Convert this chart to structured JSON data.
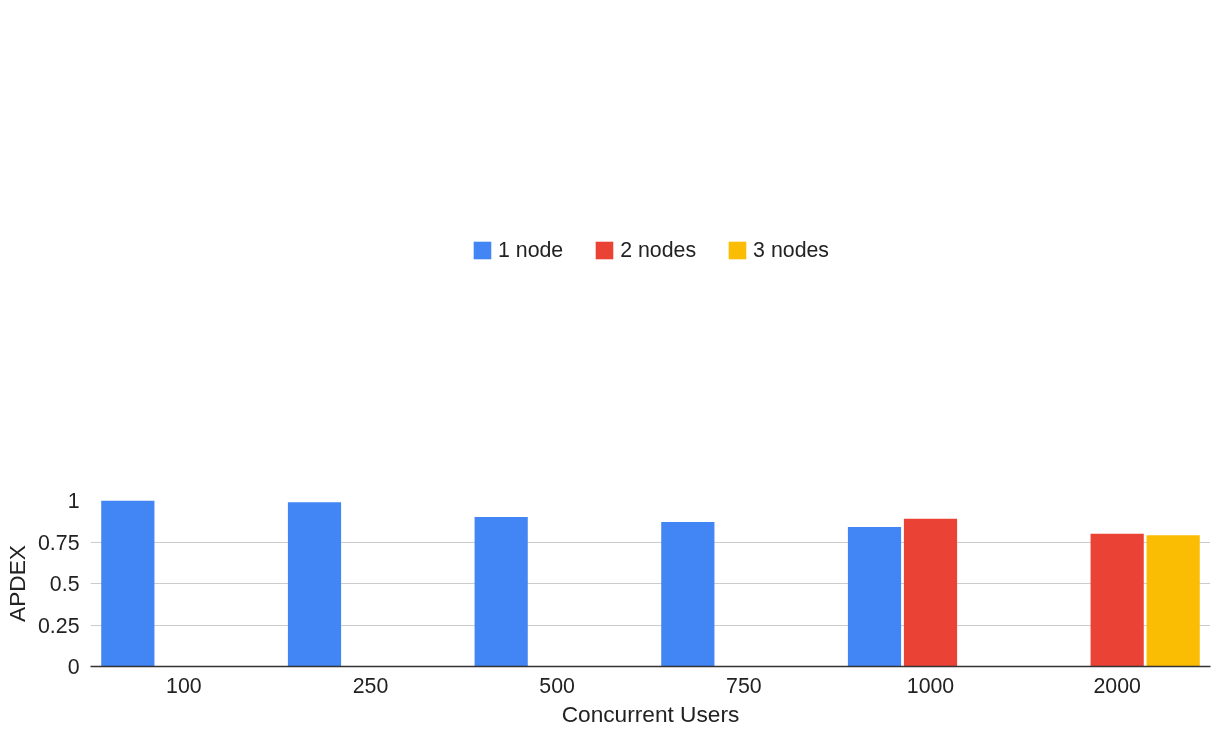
{
  "chart_data": {
    "type": "bar",
    "xlabel": "Concurrent Users",
    "ylabel": "APDEX",
    "categories": [
      "100",
      "250",
      "500",
      "750",
      "1000",
      "2000"
    ],
    "series": [
      {
        "name": "1 node",
        "color": "#4285f4",
        "values": [
          1.0,
          0.99,
          0.9,
          0.87,
          0.84,
          null
        ]
      },
      {
        "name": "2 nodes",
        "color": "#ea4335",
        "values": [
          null,
          null,
          null,
          null,
          0.89,
          0.8
        ]
      },
      {
        "name": "3 nodes",
        "color": "#fbbc04",
        "values": [
          null,
          null,
          null,
          null,
          null,
          0.79
        ]
      }
    ],
    "ylim": [
      0,
      1
    ],
    "yticks": [
      0,
      0.25,
      0.5,
      0.75,
      1
    ],
    "grid": "y",
    "legend": "top"
  }
}
